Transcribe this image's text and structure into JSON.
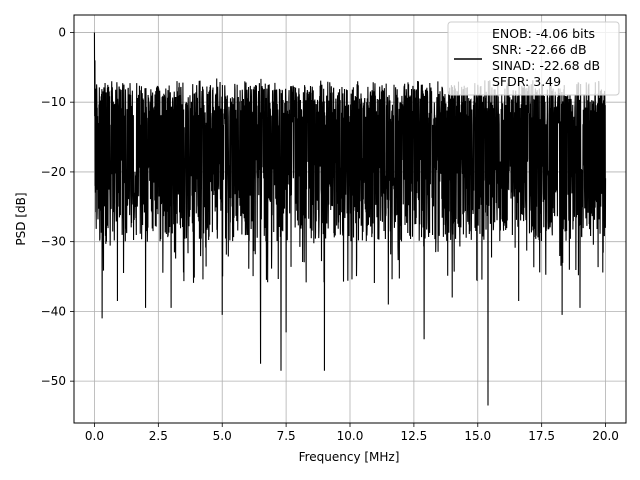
{
  "chart_data": {
    "type": "line",
    "title": "",
    "xlabel": "Frequency [MHz]",
    "ylabel": "PSD [dB]",
    "xlim": [
      -0.8,
      20.8
    ],
    "ylim": [
      -56,
      2.5
    ],
    "grid": true,
    "legend_placement": "top-right",
    "x_ticks": [
      0.0,
      2.5,
      5.0,
      7.5,
      10.0,
      12.5,
      15.0,
      17.5,
      20.0
    ],
    "x_tick_labels": [
      "0.0",
      "2.5",
      "5.0",
      "7.5",
      "10.0",
      "12.5",
      "15.0",
      "17.5",
      "20.0"
    ],
    "y_ticks": [
      0,
      -10,
      -20,
      -30,
      -40,
      -50
    ],
    "y_tick_labels": [
      "0",
      "−10",
      "−20",
      "−30",
      "−40",
      "−50"
    ],
    "legend": {
      "lines": [
        "ENOB: -4.06 bits",
        "SNR: -22.66 dB",
        "SINAD: -22.68 dB",
        "SFDR: 3.49"
      ]
    },
    "series": [
      {
        "color": "#000000",
        "noise_floor_db": -18,
        "band_top_db": -8,
        "band_bottom_db": -30,
        "peak": {
          "x": 0.0,
          "y": 0.0
        },
        "dips": [
          {
            "x": 0.3,
            "y": -41
          },
          {
            "x": 0.9,
            "y": -38.5
          },
          {
            "x": 2.0,
            "y": -39.5
          },
          {
            "x": 3.0,
            "y": -39.5
          },
          {
            "x": 5.0,
            "y": -40.5
          },
          {
            "x": 6.5,
            "y": -47.5
          },
          {
            "x": 7.3,
            "y": -48.5
          },
          {
            "x": 7.5,
            "y": -43
          },
          {
            "x": 9.0,
            "y": -48.5
          },
          {
            "x": 11.5,
            "y": -39
          },
          {
            "x": 12.9,
            "y": -44
          },
          {
            "x": 14.0,
            "y": -38
          },
          {
            "x": 15.4,
            "y": -53.5
          },
          {
            "x": 16.6,
            "y": -38.5
          },
          {
            "x": 18.3,
            "y": -40.5
          },
          {
            "x": 19.0,
            "y": -39.5
          }
        ]
      }
    ]
  }
}
